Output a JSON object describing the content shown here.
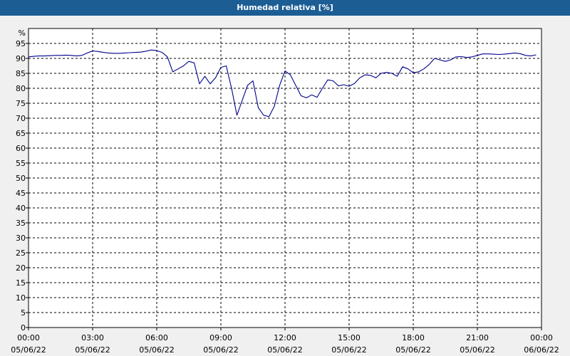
{
  "title": "Humedad relativa [%]",
  "chart_data": {
    "type": "line",
    "title": "Humedad relativa [%]",
    "ylabel": "%",
    "xlabel": "",
    "ylim": [
      0,
      100
    ],
    "y_ticks": [
      0,
      5,
      10,
      15,
      20,
      25,
      30,
      35,
      40,
      45,
      50,
      55,
      60,
      65,
      70,
      75,
      80,
      85,
      90,
      95
    ],
    "x_ticks": [
      {
        "time": "00:00",
        "date": "05/06/22"
      },
      {
        "time": "03:00",
        "date": "05/06/22"
      },
      {
        "time": "06:00",
        "date": "05/06/22"
      },
      {
        "time": "09:00",
        "date": "05/06/22"
      },
      {
        "time": "12:00",
        "date": "05/06/22"
      },
      {
        "time": "15:00",
        "date": "05/06/22"
      },
      {
        "time": "18:00",
        "date": "05/06/22"
      },
      {
        "time": "21:00",
        "date": "05/06/22"
      },
      {
        "time": "00:00",
        "date": "06/06/22"
      }
    ],
    "x_range_hours": [
      0,
      24
    ],
    "grid": true,
    "line_color": "#00008b",
    "series": [
      {
        "x": [
          0,
          0.25,
          0.5,
          0.75,
          1,
          1.25,
          1.5,
          1.75,
          2,
          2.25,
          2.5,
          2.75,
          3,
          3.25,
          3.5,
          3.75,
          4,
          4.25,
          4.5,
          4.75,
          5,
          5.25,
          5.5,
          5.75,
          6,
          6.25,
          6.5,
          6.75,
          7,
          7.25,
          7.5,
          7.75,
          8,
          8.25,
          8.5,
          8.75,
          9,
          9.25,
          9.5,
          9.75,
          10,
          10.25,
          10.5,
          10.75,
          11,
          11.25,
          11.5,
          11.75,
          12,
          12.25,
          12.5,
          12.75,
          13,
          13.25,
          13.5,
          13.75,
          14,
          14.25,
          14.5,
          14.75,
          15,
          15.25,
          15.5,
          15.75,
          16,
          16.25,
          16.5,
          16.75,
          17,
          17.25,
          17.5,
          17.75,
          18,
          18.25,
          18.5,
          18.75,
          19,
          19.25,
          19.5,
          19.75,
          20,
          20.25,
          20.5,
          20.75,
          21,
          21.25,
          21.5,
          21.75,
          22,
          22.25,
          22.5,
          22.75,
          23,
          23.25,
          23.5,
          23.75
        ],
        "y": [
          90.5,
          90.7,
          90.8,
          90.8,
          90.9,
          91,
          91,
          91.1,
          91,
          90.8,
          91,
          91.8,
          92.5,
          92.3,
          92,
          91.8,
          91.7,
          91.7,
          91.8,
          91.9,
          92,
          92.1,
          92.4,
          92.8,
          92.6,
          92,
          90.5,
          85.5,
          86.5,
          87.5,
          89,
          88.5,
          81.5,
          84,
          81.5,
          83.5,
          87,
          87.5,
          80,
          71,
          76,
          81,
          82.5,
          73.5,
          71,
          70.5,
          74,
          81,
          85.8,
          84.5,
          81,
          77.5,
          76.8,
          77.8,
          77,
          80,
          82.8,
          82.5,
          80.8,
          81.2,
          80.7,
          81.6,
          83.5,
          84.5,
          84.3,
          83.5,
          85,
          85.3,
          85,
          84,
          87.2,
          86.5,
          85.2,
          85.5,
          86.5,
          88,
          90,
          89.5,
          89,
          89.5,
          90.5,
          90.6,
          90.3,
          90.5,
          91,
          91.5,
          91.5,
          91.4,
          91.3,
          91.4,
          91.6,
          91.8,
          91.6,
          91,
          90.8,
          91.2
        ]
      }
    ]
  }
}
